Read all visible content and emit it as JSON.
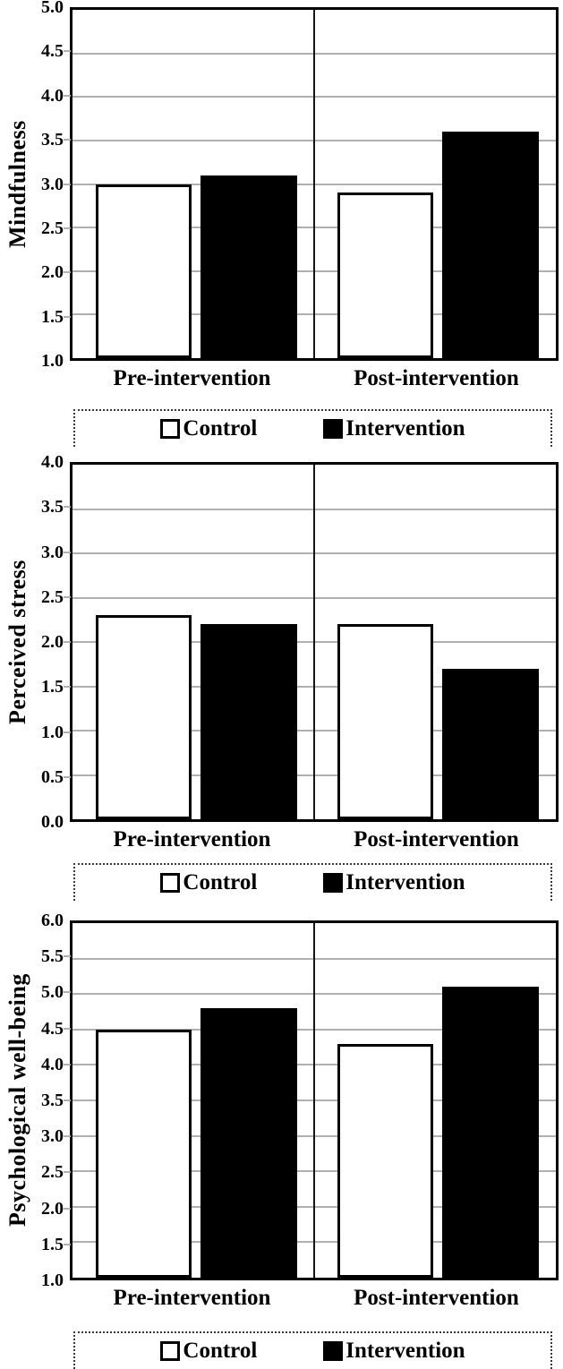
{
  "page": {
    "background": "#ffffff"
  },
  "legend": {
    "control_label": "Control",
    "intervention_label": "Intervention"
  },
  "colors": {
    "control_fill": "#ffffff",
    "intervention_fill": "#000000",
    "gridline": "#b0b0b0",
    "frame": "#000000"
  },
  "chart_data": [
    {
      "type": "bar",
      "title": "",
      "xlabel": "",
      "ylabel": "Mindfulness",
      "categories": [
        "Pre-intervention",
        "Post-intervention"
      ],
      "series": [
        {
          "name": "Control",
          "values": [
            3.0,
            2.9
          ]
        },
        {
          "name": "Intervention",
          "values": [
            3.1,
            3.6
          ]
        }
      ],
      "ylim": [
        1.0,
        5.0
      ],
      "ytick_step": 0.5,
      "yticks": [
        "5.0",
        "4.5",
        "4.0",
        "3.5",
        "3.0",
        "2.5",
        "2.0",
        "1.5",
        "1.0"
      ],
      "grid": true,
      "legend_position": "bottom"
    },
    {
      "type": "bar",
      "title": "",
      "xlabel": "",
      "ylabel": "Perceived stress",
      "categories": [
        "Pre-intervention",
        "Post-intervention"
      ],
      "series": [
        {
          "name": "Control",
          "values": [
            2.3,
            2.2
          ]
        },
        {
          "name": "Intervention",
          "values": [
            2.2,
            1.7
          ]
        }
      ],
      "ylim": [
        0.0,
        4.0
      ],
      "ytick_step": 0.5,
      "yticks": [
        "4.0",
        "3.5",
        "3.0",
        "2.5",
        "2.0",
        "1.5",
        "1.0",
        "0.5",
        "0.0"
      ],
      "grid": true,
      "legend_position": "bottom"
    },
    {
      "type": "bar",
      "title": "",
      "xlabel": "",
      "ylabel": "Psychological well-being",
      "categories": [
        "Pre-intervention",
        "Post-intervention"
      ],
      "series": [
        {
          "name": "Control",
          "values": [
            4.5,
            4.3
          ]
        },
        {
          "name": "Intervention",
          "values": [
            4.8,
            5.1
          ]
        }
      ],
      "ylim": [
        1.0,
        6.0
      ],
      "ytick_step": 0.5,
      "yticks": [
        "6.0",
        "5.5",
        "5.0",
        "4.5",
        "4.0",
        "3.5",
        "3.0",
        "2.5",
        "2.0",
        "1.5",
        "1.0"
      ],
      "grid": true,
      "legend_position": "bottom"
    }
  ]
}
